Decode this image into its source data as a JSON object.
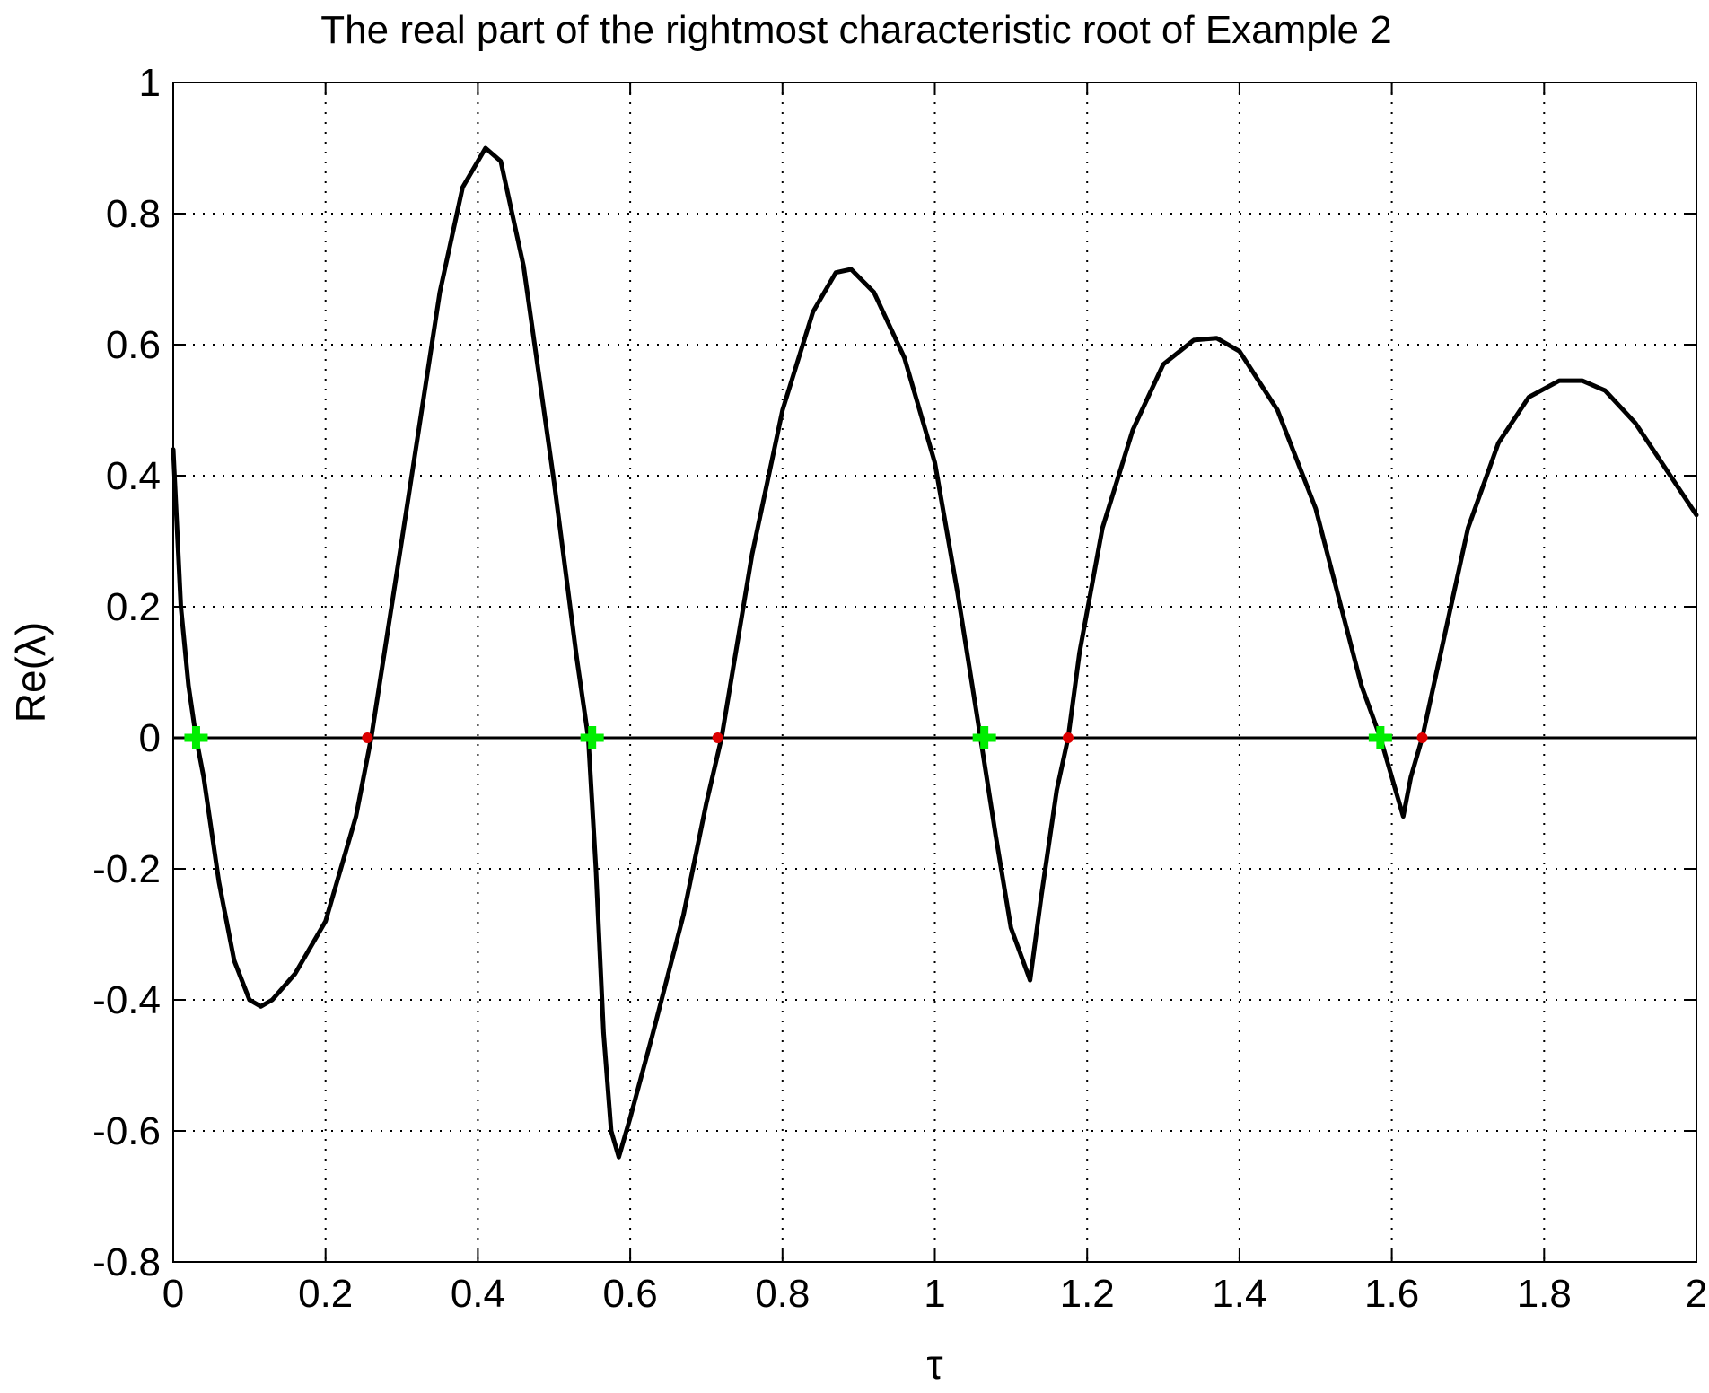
{
  "chart_data": {
    "type": "line",
    "title": "The real part of the rightmost characteristic root of Example 2",
    "xlabel": "τ",
    "ylabel": "Re(λ)",
    "xlim": [
      0,
      2
    ],
    "ylim": [
      -0.8,
      1
    ],
    "grid": true,
    "x_ticks": [
      0,
      0.2,
      0.4,
      0.6,
      0.8,
      1,
      1.2,
      1.4,
      1.6,
      1.8,
      2
    ],
    "x_tick_labels": [
      "0",
      "0.2",
      "0.4",
      "0.6",
      "0.8",
      "1",
      "1.2",
      "1.4",
      "1.6",
      "1.8",
      "2"
    ],
    "y_ticks": [
      -0.8,
      -0.6,
      -0.4,
      -0.2,
      0,
      0.2,
      0.4,
      0.6,
      0.8,
      1
    ],
    "y_tick_labels": [
      "-0.8",
      "-0.6",
      "-0.4",
      "-0.2",
      "0",
      "0.2",
      "0.4",
      "0.6",
      "0.8",
      "1"
    ],
    "reference_line": {
      "y": 0,
      "color": "#000000"
    },
    "series": [
      {
        "color": "#000000",
        "x": [
          0.0,
          0.01,
          0.02,
          0.03,
          0.04,
          0.06,
          0.08,
          0.1,
          0.115,
          0.13,
          0.16,
          0.2,
          0.24,
          0.26,
          0.3,
          0.35,
          0.38,
          0.41,
          0.43,
          0.46,
          0.5,
          0.53,
          0.545,
          0.555,
          0.565,
          0.575,
          0.585,
          0.6,
          0.63,
          0.67,
          0.7,
          0.72,
          0.76,
          0.8,
          0.84,
          0.87,
          0.89,
          0.92,
          0.96,
          1.0,
          1.03,
          1.06,
          1.08,
          1.1,
          1.125,
          1.14,
          1.16,
          1.175,
          1.19,
          1.22,
          1.26,
          1.3,
          1.34,
          1.37,
          1.4,
          1.45,
          1.5,
          1.54,
          1.56,
          1.585,
          1.6,
          1.615,
          1.625,
          1.64,
          1.67,
          1.7,
          1.74,
          1.78,
          1.82,
          1.85,
          1.88,
          1.92,
          1.96,
          2.0
        ],
        "y": [
          0.44,
          0.2,
          0.08,
          0.0,
          -0.06,
          -0.22,
          -0.34,
          -0.4,
          -0.41,
          -0.4,
          -0.36,
          -0.28,
          -0.12,
          0.0,
          0.3,
          0.68,
          0.84,
          0.9,
          0.88,
          0.72,
          0.39,
          0.12,
          0.0,
          -0.2,
          -0.45,
          -0.6,
          -0.64,
          -0.58,
          -0.45,
          -0.27,
          -0.1,
          0.0,
          0.28,
          0.5,
          0.65,
          0.71,
          0.715,
          0.68,
          0.58,
          0.42,
          0.22,
          0.0,
          -0.15,
          -0.29,
          -0.37,
          -0.24,
          -0.08,
          0.0,
          0.13,
          0.32,
          0.47,
          0.57,
          0.607,
          0.61,
          0.59,
          0.5,
          0.35,
          0.17,
          0.08,
          0.0,
          -0.06,
          -0.12,
          -0.06,
          0.0,
          0.16,
          0.32,
          0.45,
          0.52,
          0.545,
          0.545,
          0.53,
          0.48,
          0.41,
          0.34
        ]
      }
    ],
    "markers": [
      {
        "name": "stability-switch-marker",
        "color": "#00ee00",
        "x": [
          0.03,
          0.55,
          1.065,
          1.585
        ],
        "y": [
          0,
          0,
          0,
          0
        ]
      },
      {
        "name": "crossing-marker",
        "color": "#dd0000",
        "x": [
          0.255,
          0.715,
          1.175,
          1.64
        ],
        "y": [
          0,
          0,
          0,
          0
        ]
      }
    ]
  }
}
